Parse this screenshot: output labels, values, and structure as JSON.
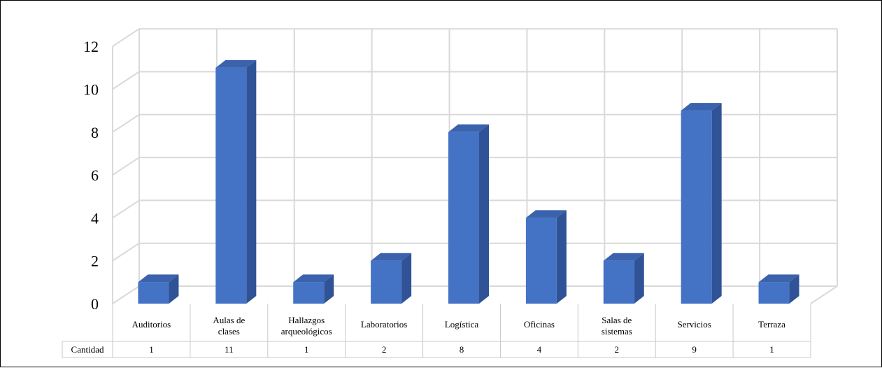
{
  "chart_data": {
    "type": "bar",
    "style": "3d-column",
    "categories": [
      "Auditorios",
      "Aulas de clases",
      "Hallazgos arqueológicos",
      "Laboratorios",
      "Logística",
      "Oficinas",
      "Salas de sistemas",
      "Servicios",
      "Terraza"
    ],
    "category_lines": [
      [
        "Auditorios"
      ],
      [
        "Aulas de",
        "clases"
      ],
      [
        "Hallazgos",
        "arqueológicos"
      ],
      [
        "Laboratorios"
      ],
      [
        "Logística"
      ],
      [
        "Oficinas"
      ],
      [
        "Salas de",
        "sistemas"
      ],
      [
        "Servicios"
      ],
      [
        "Terraza"
      ]
    ],
    "series": [
      {
        "name": "Cantidad",
        "values": [
          1,
          11,
          1,
          2,
          8,
          4,
          2,
          9,
          1
        ]
      }
    ],
    "data_table_labels": [
      "1",
      "11",
      "1",
      "2",
      "8",
      "4",
      "2",
      "9",
      "1"
    ],
    "yticks": [
      0,
      2,
      4,
      6,
      8,
      10,
      12
    ],
    "ylim": [
      0,
      12
    ],
    "grid": true,
    "data_table": true,
    "legend": "none",
    "colors": {
      "bar_front": "#4472C4",
      "bar_side": "#2F5396",
      "bar_top": "#3A62AD",
      "grid": "#D9D9D9",
      "text": "#000000"
    }
  }
}
